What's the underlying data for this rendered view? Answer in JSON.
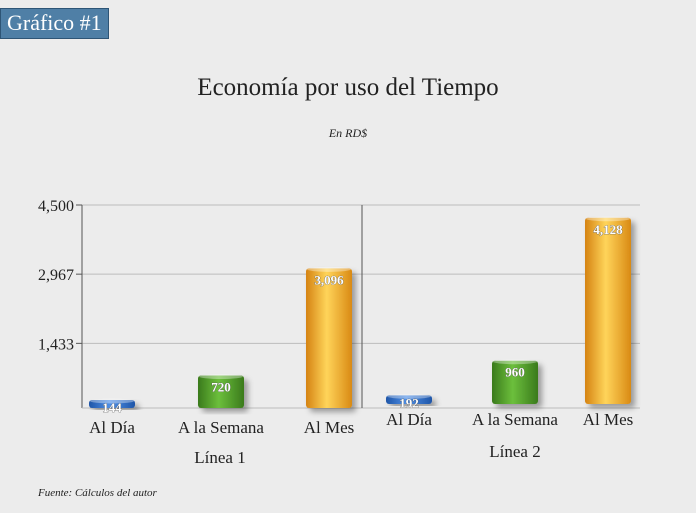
{
  "badge": "Gráfico #1",
  "source": "Fuente: Cálculos del autor",
  "colors": {
    "blue": "#2f6fc9",
    "green": "#4f9a2a",
    "gold": "#efa81f"
  },
  "chart_data": {
    "type": "bar",
    "title": "Economía por uso del Tiempo",
    "subtitle": "En RD$",
    "xlabel": "",
    "ylabel": "",
    "ylim": [
      0,
      4500
    ],
    "yticks": [
      {
        "value": 1433,
        "label": "1,433"
      },
      {
        "value": 2967,
        "label": "2,967"
      },
      {
        "value": 4500,
        "label": "4,500"
      }
    ],
    "grid": true,
    "groups": [
      {
        "name": "Línea 1",
        "bars": [
          {
            "category": "Al Día",
            "value": 144,
            "label": "144",
            "color": "blue"
          },
          {
            "category": "A la Semana",
            "value": 720,
            "label": "720",
            "color": "green"
          },
          {
            "category": "Al Mes",
            "value": 3096,
            "label": "3,096",
            "color": "gold"
          }
        ]
      },
      {
        "name": "Línea 2",
        "bars": [
          {
            "category": "Al Día",
            "value": 192,
            "label": "192",
            "color": "blue"
          },
          {
            "category": "A la Semana",
            "value": 960,
            "label": "960",
            "color": "green"
          },
          {
            "category": "Al Mes",
            "value": 4128,
            "label": "4,128",
            "color": "gold"
          }
        ]
      }
    ]
  }
}
